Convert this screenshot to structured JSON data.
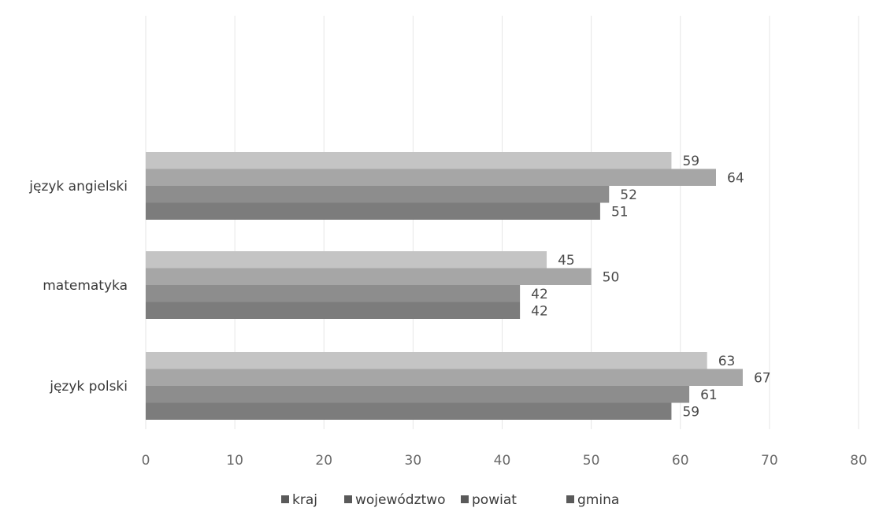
{
  "chart_data": {
    "type": "bar",
    "orientation": "horizontal",
    "categories": [
      "język polski",
      "matematyka",
      "język angielski"
    ],
    "series": [
      {
        "name": "kraj",
        "values": [
          63,
          45,
          59
        ],
        "color": "#c4c4c4"
      },
      {
        "name": "województwo",
        "values": [
          67,
          50,
          64
        ],
        "color": "#a6a6a6"
      },
      {
        "name": "powiat",
        "values": [
          61,
          42,
          52
        ],
        "color": "#8d8d8d"
      },
      {
        "name": "gmina",
        "values": [
          59,
          42,
          51
        ],
        "color": "#7c7c7c"
      }
    ],
    "xlim": [
      0,
      80
    ],
    "xticks": [
      "0",
      "10",
      "20",
      "30",
      "40",
      "50",
      "60",
      "70",
      "80"
    ],
    "title": "",
    "xlabel": "",
    "ylabel": "",
    "grid": "vertical",
    "legend_position": "bottom",
    "data_labels": true
  }
}
